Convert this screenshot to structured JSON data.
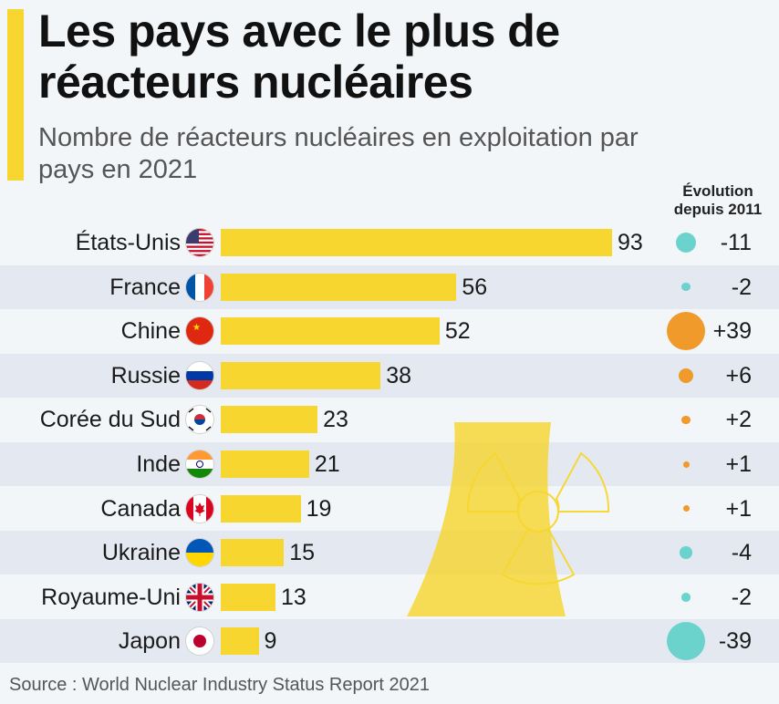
{
  "title": "Les pays avec le plus de réacteurs nucléaires",
  "subtitle": "Nombre de réacteurs nucléaires en exploitation par pays en 2021",
  "evolution_header": "Évolution depuis 2011",
  "source": "Source : World Nuclear Industry Status Report 2021",
  "colors": {
    "bar": "#f7d630",
    "increase": "#ef9a2b",
    "decrease": "#6cd3cc",
    "background": "#f3f6f9",
    "row_shade": "#e4e9f1"
  },
  "chart_data": {
    "type": "bar",
    "orientation": "horizontal",
    "title": "Les pays avec le plus de réacteurs nucléaires",
    "subtitle": "Nombre de réacteurs nucléaires en exploitation par pays en 2021",
    "categories": [
      "États-Unis",
      "France",
      "Chine",
      "Russie",
      "Corée du Sud",
      "Inde",
      "Canada",
      "Ukraine",
      "Royaume-Uni",
      "Japon"
    ],
    "flags": [
      "us-flag-icon",
      "france-flag-icon",
      "china-flag-icon",
      "russia-flag-icon",
      "south-korea-flag-icon",
      "india-flag-icon",
      "canada-flag-icon",
      "ukraine-flag-icon",
      "uk-flag-icon",
      "japan-flag-icon"
    ],
    "values": [
      93,
      56,
      52,
      38,
      23,
      21,
      19,
      15,
      13,
      9
    ],
    "value_labels": [
      "93",
      "56",
      "52",
      "38",
      "23",
      "21",
      "19",
      "15",
      "13",
      "9"
    ],
    "change_since_2011": [
      -11,
      -2,
      39,
      6,
      2,
      1,
      1,
      -4,
      -2,
      -39
    ],
    "change_labels": [
      "-11",
      "-2",
      "+39",
      "+6",
      "+2",
      "+1",
      "+1",
      "-4",
      "-2",
      "-39"
    ],
    "xlim": [
      0,
      93
    ],
    "xlabel": "",
    "ylabel": "",
    "grid": false
  }
}
